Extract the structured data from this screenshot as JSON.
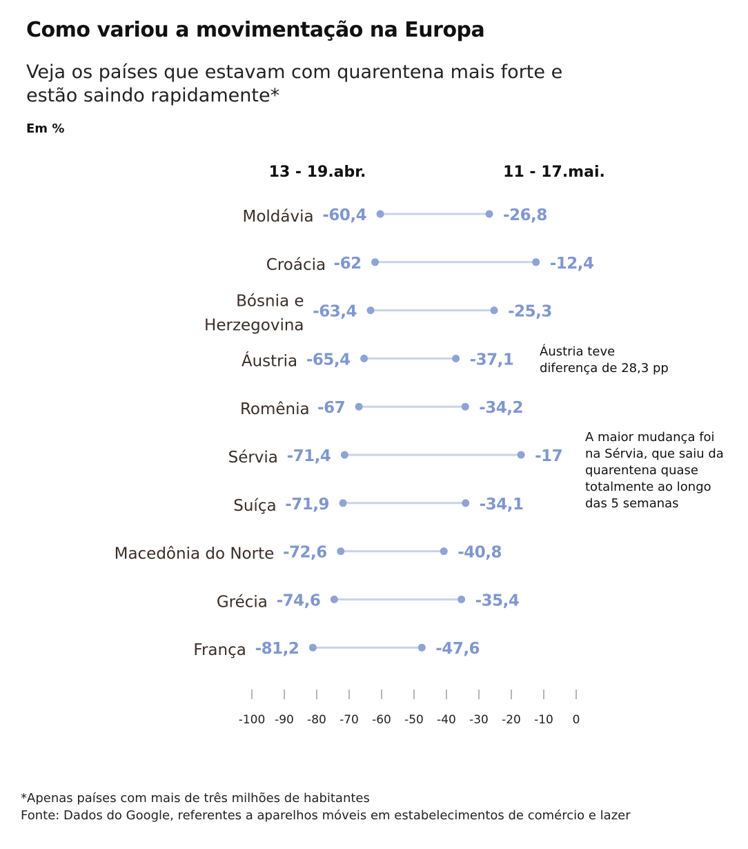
{
  "title": "Como variou a movimentação na Europa",
  "subtitle": "Veja os países que estavam com quarentena mais forte e estão saindo rapidamente*",
  "unit": "Em %",
  "colors": {
    "dot": "#8fa3d6",
    "line": "#c8d2ea",
    "value_text": "#7f97cf",
    "label_text": "#3a2e28"
  },
  "chart_data": {
    "type": "dumbbell",
    "series": [
      {
        "name": "13 - 19.abr."
      },
      {
        "name": "11 - 17.mai."
      }
    ],
    "countries": [
      {
        "name": "Moldávia",
        "start": -60.4,
        "end": -26.8,
        "start_label": "-60,4",
        "end_label": "-26,8"
      },
      {
        "name": "Croácia",
        "start": -62,
        "end": -12.4,
        "start_label": "-62",
        "end_label": "-12,4"
      },
      {
        "name": "Bósnia e Herzegovina",
        "start": -63.4,
        "end": -25.3,
        "start_label": "-63,4",
        "end_label": "-25,3"
      },
      {
        "name": "Áustria",
        "start": -65.4,
        "end": -37.1,
        "start_label": "-65,4",
        "end_label": "-37,1"
      },
      {
        "name": "Romênia",
        "start": -67,
        "end": -34.2,
        "start_label": "-67",
        "end_label": "-34,2"
      },
      {
        "name": "Sérvia",
        "start": -71.4,
        "end": -17,
        "start_label": "-71,4",
        "end_label": "-17"
      },
      {
        "name": "Suíça",
        "start": -71.9,
        "end": -34.1,
        "start_label": "-71,9",
        "end_label": "-34,1"
      },
      {
        "name": "Macedônia do Norte",
        "start": -72.6,
        "end": -40.8,
        "start_label": "-72,6",
        "end_label": "-40,8"
      },
      {
        "name": "Grécia",
        "start": -74.6,
        "end": -35.4,
        "start_label": "-74,6",
        "end_label": "-35,4"
      },
      {
        "name": "França",
        "start": -81.2,
        "end": -47.6,
        "start_label": "-81,2",
        "end_label": "-47,6"
      }
    ],
    "xlim": [
      -100,
      0
    ],
    "ticks": [
      "-100",
      "-90",
      "-80",
      "-70",
      "-60",
      "-50",
      "-40",
      "-30",
      "-20",
      "-10",
      "0"
    ],
    "tick_values": [
      -100,
      -90,
      -80,
      -70,
      -60,
      -50,
      -40,
      -30,
      -20,
      -10,
      0
    ],
    "annotations": [
      {
        "text_lines": [
          "Áustria teve",
          "diferença de 28,3 pp"
        ]
      },
      {
        "text_lines": [
          "A maior mudança foi",
          "na Sérvia, que saiu da",
          "quarentena quase",
          "totalmente ao longo",
          "das 5 semanas"
        ]
      }
    ]
  },
  "footnote": {
    "line1": "*Apenas países com mais de três milhões de habitantes",
    "line2": "Fonte: Dados do Google, referentes a aparelhos móveis em estabelecimentos de comércio e lazer"
  }
}
